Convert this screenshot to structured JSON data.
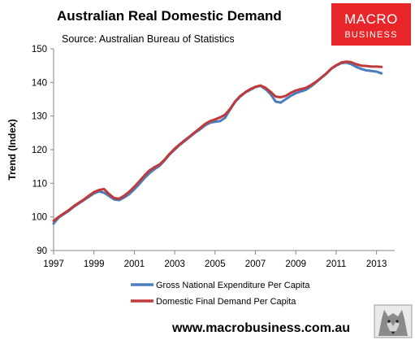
{
  "header": {
    "title": "Australian Real Domestic Demand",
    "subtitle": "Source: Australian Bureau of Statistics"
  },
  "logo": {
    "line1": "MACRO",
    "line2": "BUSINESS",
    "bg_color": "#e8262a"
  },
  "footer": {
    "url": "www.macrobusiness.com.au",
    "wolf_logo": "wolf-logo-icon"
  },
  "chart_data": {
    "type": "line",
    "title": "Australian Real Domestic Demand",
    "subtitle": "Source: Australian Bureau of Statistics",
    "xlabel": "",
    "ylabel": "Trend (Index)",
    "xlim": [
      1997,
      2013.9
    ],
    "ylim": [
      90,
      150
    ],
    "xticks": [
      1997,
      1999,
      2001,
      2003,
      2005,
      2007,
      2009,
      2011,
      2013
    ],
    "yticks": [
      90,
      100,
      110,
      120,
      130,
      140,
      150
    ],
    "grid": false,
    "legend_position": "bottom",
    "series": [
      {
        "name": "Gross National Expenditure Per Capita",
        "color": "#4a7ebb",
        "points": [
          [
            1997.0,
            98.0
          ],
          [
            1997.25,
            99.8
          ],
          [
            1997.5,
            100.8
          ],
          [
            1997.75,
            101.8
          ],
          [
            1998.0,
            103.0
          ],
          [
            1998.25,
            104.0
          ],
          [
            1998.5,
            105.0
          ],
          [
            1998.75,
            106.0
          ],
          [
            1999.0,
            107.0
          ],
          [
            1999.25,
            107.6
          ],
          [
            1999.5,
            107.2
          ],
          [
            1999.75,
            106.2
          ],
          [
            2000.0,
            105.2
          ],
          [
            2000.25,
            105.0
          ],
          [
            2000.5,
            105.8
          ],
          [
            2000.75,
            106.8
          ],
          [
            2001.0,
            108.2
          ],
          [
            2001.25,
            109.8
          ],
          [
            2001.5,
            111.5
          ],
          [
            2001.75,
            113.0
          ],
          [
            2002.0,
            114.2
          ],
          [
            2002.25,
            115.2
          ],
          [
            2002.5,
            116.8
          ],
          [
            2002.75,
            118.6
          ],
          [
            2003.0,
            120.0
          ],
          [
            2003.25,
            121.4
          ],
          [
            2003.5,
            122.6
          ],
          [
            2003.75,
            123.8
          ],
          [
            2004.0,
            125.0
          ],
          [
            2004.25,
            126.0
          ],
          [
            2004.5,
            127.2
          ],
          [
            2004.75,
            128.0
          ],
          [
            2005.0,
            128.3
          ],
          [
            2005.25,
            128.5
          ],
          [
            2005.5,
            129.5
          ],
          [
            2005.75,
            132.0
          ],
          [
            2006.0,
            134.3
          ],
          [
            2006.25,
            135.8
          ],
          [
            2006.5,
            137.0
          ],
          [
            2006.75,
            137.8
          ],
          [
            2007.0,
            138.6
          ],
          [
            2007.25,
            139.0
          ],
          [
            2007.5,
            138.0
          ],
          [
            2007.75,
            136.5
          ],
          [
            2008.0,
            134.3
          ],
          [
            2008.25,
            134.0
          ],
          [
            2008.5,
            135.0
          ],
          [
            2008.75,
            136.0
          ],
          [
            2009.0,
            136.8
          ],
          [
            2009.25,
            137.3
          ],
          [
            2009.5,
            137.8
          ],
          [
            2009.75,
            138.8
          ],
          [
            2010.0,
            140.0
          ],
          [
            2010.25,
            141.3
          ],
          [
            2010.5,
            142.5
          ],
          [
            2010.75,
            144.0
          ],
          [
            2011.0,
            145.0
          ],
          [
            2011.25,
            145.7
          ],
          [
            2011.5,
            145.9
          ],
          [
            2011.75,
            145.4
          ],
          [
            2012.0,
            144.6
          ],
          [
            2012.25,
            144.0
          ],
          [
            2012.5,
            143.6
          ],
          [
            2012.75,
            143.4
          ],
          [
            2013.0,
            143.2
          ],
          [
            2013.25,
            142.7
          ]
        ]
      },
      {
        "name": "Domestic Final Demand Per Capita",
        "color": "#c0393b",
        "points": [
          [
            1997.0,
            98.8
          ],
          [
            1997.25,
            100.0
          ],
          [
            1997.5,
            101.0
          ],
          [
            1997.75,
            102.0
          ],
          [
            1998.0,
            103.2
          ],
          [
            1998.25,
            104.2
          ],
          [
            1998.5,
            105.2
          ],
          [
            1998.75,
            106.3
          ],
          [
            1999.0,
            107.4
          ],
          [
            1999.25,
            108.0
          ],
          [
            1999.5,
            108.3
          ],
          [
            1999.75,
            106.8
          ],
          [
            2000.0,
            105.6
          ],
          [
            2000.25,
            105.4
          ],
          [
            2000.5,
            106.3
          ],
          [
            2000.75,
            107.5
          ],
          [
            2001.0,
            109.0
          ],
          [
            2001.25,
            110.6
          ],
          [
            2001.5,
            112.3
          ],
          [
            2001.75,
            113.8
          ],
          [
            2002.0,
            114.8
          ],
          [
            2002.25,
            115.6
          ],
          [
            2002.5,
            117.0
          ],
          [
            2002.75,
            118.8
          ],
          [
            2003.0,
            120.3
          ],
          [
            2003.25,
            121.6
          ],
          [
            2003.5,
            122.8
          ],
          [
            2003.75,
            124.0
          ],
          [
            2004.0,
            125.2
          ],
          [
            2004.25,
            126.4
          ],
          [
            2004.5,
            127.6
          ],
          [
            2004.75,
            128.5
          ],
          [
            2005.0,
            129.0
          ],
          [
            2005.25,
            129.6
          ],
          [
            2005.5,
            130.4
          ],
          [
            2005.75,
            132.2
          ],
          [
            2006.0,
            134.4
          ],
          [
            2006.25,
            136.0
          ],
          [
            2006.5,
            137.1
          ],
          [
            2006.75,
            138.0
          ],
          [
            2007.0,
            138.7
          ],
          [
            2007.25,
            139.1
          ],
          [
            2007.5,
            138.4
          ],
          [
            2007.75,
            137.2
          ],
          [
            2008.0,
            135.8
          ],
          [
            2008.25,
            135.6
          ],
          [
            2008.5,
            136.0
          ],
          [
            2008.75,
            136.9
          ],
          [
            2009.0,
            137.6
          ],
          [
            2009.25,
            138.0
          ],
          [
            2009.5,
            138.4
          ],
          [
            2009.75,
            139.2
          ],
          [
            2010.0,
            140.2
          ],
          [
            2010.25,
            141.4
          ],
          [
            2010.5,
            142.6
          ],
          [
            2010.75,
            144.1
          ],
          [
            2011.0,
            145.1
          ],
          [
            2011.25,
            145.9
          ],
          [
            2011.5,
            146.2
          ],
          [
            2011.75,
            146.0
          ],
          [
            2012.0,
            145.4
          ],
          [
            2012.25,
            145.0
          ],
          [
            2012.5,
            144.9
          ],
          [
            2012.75,
            144.7
          ],
          [
            2013.0,
            144.7
          ],
          [
            2013.25,
            144.6
          ]
        ]
      }
    ]
  }
}
